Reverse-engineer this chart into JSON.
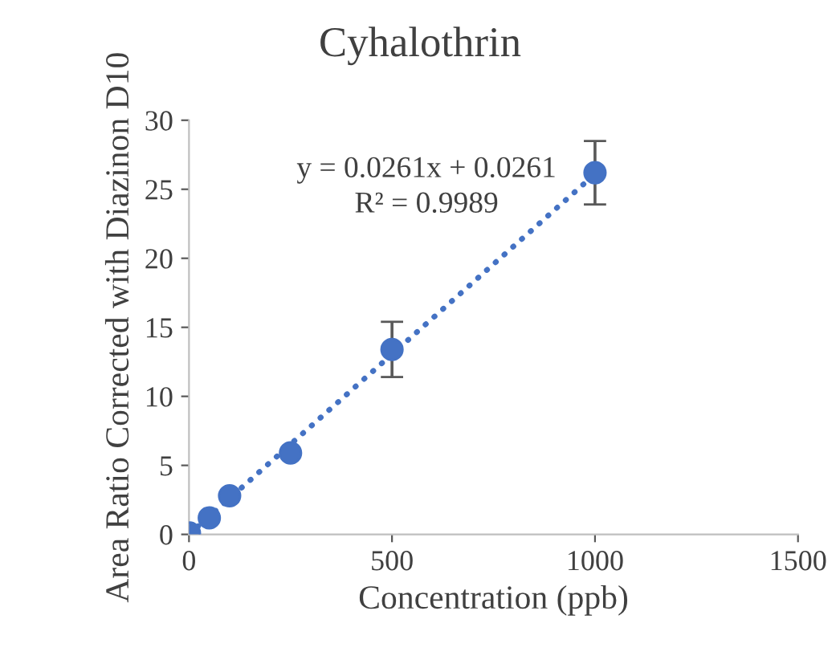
{
  "chart_data": {
    "type": "scatter",
    "title": "Cyhalothrin",
    "xlabel": "Concentration (ppb)",
    "ylabel": "Area Ratio Corrected with Diazinon D10",
    "xlim": [
      0,
      1500
    ],
    "xticks": [
      0,
      500,
      1000,
      1500
    ],
    "ylim": [
      0,
      30
    ],
    "yticks": [
      0,
      5,
      10,
      15,
      20,
      25,
      30
    ],
    "grid": false,
    "legend": false,
    "marker": "circle",
    "annotations": [
      "y = 0.0261x + 0.0261",
      "R² = 0.9989"
    ],
    "series": [
      {
        "color": "#4472c4",
        "x": [
          1,
          50,
          100,
          250,
          500,
          1000
        ],
        "values": [
          0.1,
          1.2,
          2.8,
          5.9,
          13.4,
          26.2
        ],
        "errors": [
          null,
          null,
          null,
          null,
          2.0,
          2.3
        ]
      },
      {
        "type": "line",
        "color": "#4472c4",
        "marker": "none",
        "line_style": "dotted",
        "x": [
          0,
          1000
        ],
        "values": [
          0.0,
          26.1
        ]
      }
    ]
  }
}
